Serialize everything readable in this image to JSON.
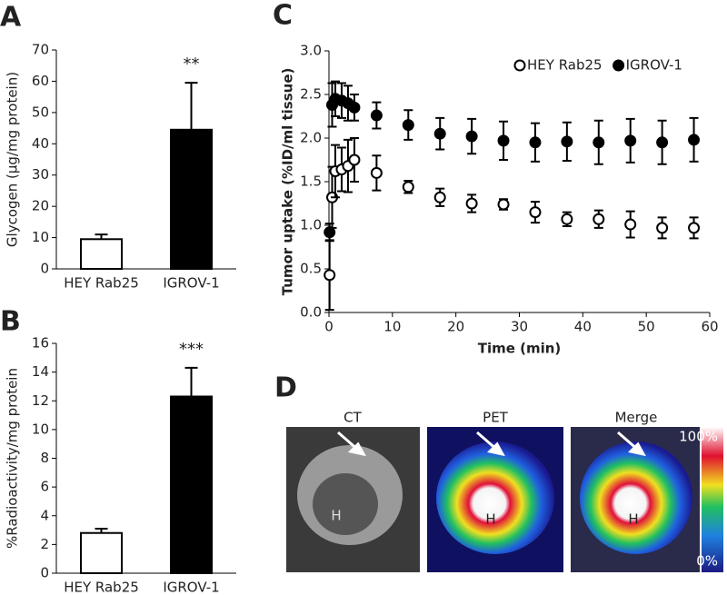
{
  "chart_data": [
    {
      "type": "bar",
      "panel": "A",
      "ylabel": "Glycogen (μg/mg protein)",
      "categories": [
        "HEY Rab25",
        "IGROV-1"
      ],
      "values": [
        9.5,
        44.5
      ],
      "errors": [
        1.5,
        15
      ],
      "colors": [
        "#ffffff",
        "#000000"
      ],
      "annotation": "**",
      "ylim": [
        0,
        70
      ],
      "yticks": [
        0,
        10,
        20,
        30,
        40,
        50,
        60,
        70
      ]
    },
    {
      "type": "bar",
      "panel": "B",
      "ylabel": "%Radioactivity/mg protein",
      "categories": [
        "HEY Rab25",
        "IGROV-1"
      ],
      "values": [
        2.8,
        12.3
      ],
      "errors": [
        0.3,
        2.0
      ],
      "colors": [
        "#ffffff",
        "#000000"
      ],
      "annotation": "***",
      "ylim": [
        0,
        16
      ],
      "yticks": [
        0,
        2,
        4,
        6,
        8,
        10,
        12,
        14,
        16
      ]
    },
    {
      "type": "scatter",
      "panel": "C",
      "xlabel": "Time (min)",
      "ylabel": "Tumor uptake (%ID/ml tissue)",
      "x": [
        0.1,
        0.5,
        1,
        2,
        3,
        4,
        7.5,
        12.5,
        17.5,
        22.5,
        27.5,
        32.5,
        37.5,
        42.5,
        47.5,
        52.5,
        57.5
      ],
      "series": [
        {
          "name": "HEY Rab25",
          "color": "#ffffff",
          "values": [
            0.43,
            1.32,
            1.62,
            1.64,
            1.68,
            1.75,
            1.6,
            1.44,
            1.32,
            1.25,
            1.24,
            1.15,
            1.07,
            1.07,
            1.01,
            0.97,
            0.97
          ],
          "errors": [
            0.4,
            0.35,
            0.3,
            0.25,
            0.3,
            0.25,
            0.2,
            0.07,
            0.1,
            0.1,
            0.06,
            0.12,
            0.08,
            0.1,
            0.15,
            0.12,
            0.12
          ]
        },
        {
          "name": "IGROV-1",
          "color": "#000000",
          "values": [
            0.92,
            2.38,
            2.45,
            2.43,
            2.4,
            2.35,
            2.26,
            2.15,
            2.05,
            2.02,
            1.97,
            1.95,
            1.96,
            1.95,
            1.97,
            1.95,
            1.98
          ],
          "errors": [
            0.1,
            0.25,
            0.2,
            0.2,
            0.2,
            0.15,
            0.15,
            0.17,
            0.18,
            0.2,
            0.22,
            0.22,
            0.22,
            0.25,
            0.25,
            0.25,
            0.25
          ]
        }
      ],
      "xlim": [
        0,
        60
      ],
      "xticks": [
        0,
        10,
        20,
        30,
        40,
        50,
        60
      ],
      "ylim": [
        0,
        3
      ],
      "yticks": [
        {
          "value": 0,
          "label": "0.0"
        },
        0.5,
        {
          "value": 1,
          "label": "1.0"
        },
        1.5,
        {
          "value": 2,
          "label": "2.0"
        },
        2.5,
        {
          "value": 3,
          "label": "3.0"
        }
      ],
      "legend": "top-right"
    }
  ],
  "image_panel": {
    "panel": "D",
    "images": [
      {
        "title": "CT",
        "marker": "H"
      },
      {
        "title": "PET",
        "marker": "H"
      },
      {
        "title": "Merge",
        "marker": "H"
      }
    ],
    "scale": {
      "max": "100%",
      "min": "0%"
    }
  }
}
